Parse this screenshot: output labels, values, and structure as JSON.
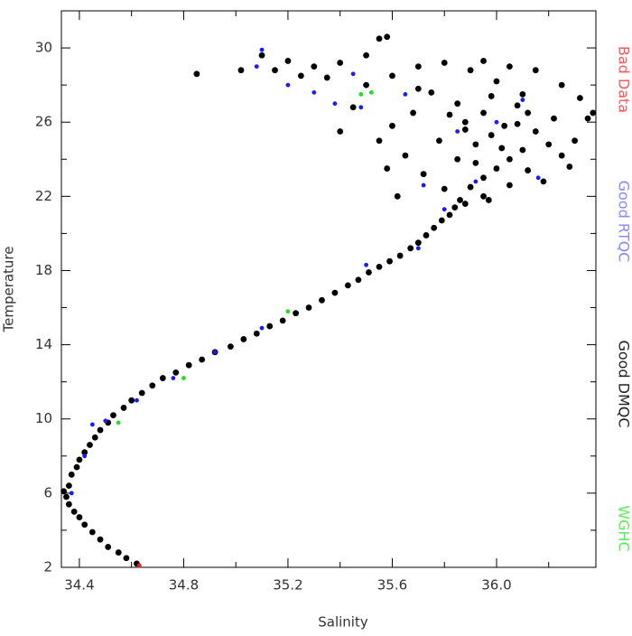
{
  "chart_data": {
    "type": "scatter",
    "xlabel": "Salinity",
    "ylabel": "Temperature",
    "xlim": [
      34.331,
      36.381
    ],
    "ylim": [
      2,
      32
    ],
    "xticks": [
      34.4,
      34.8,
      35.2,
      35.6,
      {
        "value": 36.0,
        "label": "36.0"
      }
    ],
    "xminor_ticks": [
      34.6,
      35.0,
      35.4,
      35.8,
      36.2
    ],
    "yticks": [
      2,
      6,
      10,
      14,
      18,
      22,
      26,
      30
    ],
    "yminor_ticks": [
      4,
      8,
      12,
      16,
      20,
      24,
      28
    ],
    "legend": "right",
    "series": [
      {
        "name": "Good DMQC",
        "color": "#000000",
        "x": [
          34.62,
          34.58,
          34.55,
          34.51,
          34.48,
          34.45,
          34.42,
          34.4,
          34.38,
          34.36,
          34.35,
          34.34,
          34.36,
          34.37,
          34.39,
          34.4,
          34.42,
          34.44,
          34.46,
          34.48,
          34.51,
          34.53,
          34.57,
          34.6,
          34.64,
          34.68,
          34.72,
          34.77,
          34.82,
          34.87,
          34.92,
          34.98,
          35.03,
          35.08,
          35.13,
          35.18,
          35.23,
          35.28,
          35.33,
          35.38,
          35.43,
          35.47,
          35.51,
          35.55,
          35.59,
          35.63,
          35.67,
          35.7,
          35.73,
          35.76,
          35.79,
          35.82,
          35.84,
          35.86,
          35.9,
          35.95,
          36.0,
          36.05,
          36.1,
          35.92,
          35.98,
          36.03,
          35.88,
          35.95,
          36.08,
          36.15,
          36.2,
          36.25,
          36.12,
          36.05,
          35.97,
          36.18,
          36.28,
          36.3,
          36.22,
          36.1,
          36.0,
          35.9,
          35.8,
          35.7,
          35.6,
          35.75,
          35.85,
          35.68,
          35.6,
          35.55,
          35.65,
          35.72,
          35.8,
          35.62,
          35.58,
          35.7,
          35.5,
          35.45,
          35.4,
          36.35,
          36.37,
          36.32,
          36.25,
          36.15,
          36.05,
          35.95,
          35.85,
          35.92,
          36.02,
          36.08,
          35.98,
          35.88,
          36.12,
          35.78,
          35.82,
          35.95,
          35.88,
          35.55,
          35.58,
          35.5,
          35.4,
          35.3,
          35.2,
          35.15,
          35.1,
          34.85,
          35.02,
          35.25,
          35.35
        ],
        "values": [
          2.2,
          2.5,
          2.8,
          3.1,
          3.5,
          3.9,
          4.3,
          4.7,
          5.0,
          5.4,
          5.8,
          6.1,
          6.4,
          7.0,
          7.4,
          7.8,
          8.2,
          8.6,
          9.0,
          9.4,
          9.8,
          10.2,
          10.6,
          11.0,
          11.4,
          11.8,
          12.2,
          12.5,
          12.9,
          13.2,
          13.6,
          13.9,
          14.3,
          14.6,
          15.0,
          15.3,
          15.7,
          16.0,
          16.4,
          16.8,
          17.2,
          17.5,
          17.9,
          18.2,
          18.5,
          18.8,
          19.2,
          19.5,
          19.9,
          20.3,
          20.7,
          21.0,
          21.4,
          21.8,
          22.5,
          23.0,
          23.5,
          24.0,
          24.5,
          24.8,
          25.3,
          25.8,
          26.0,
          26.5,
          26.9,
          25.5,
          24.8,
          24.2,
          23.4,
          22.6,
          21.8,
          22.8,
          23.6,
          25.0,
          26.2,
          27.5,
          28.2,
          28.8,
          29.2,
          29.0,
          28.5,
          27.6,
          27.0,
          26.5,
          25.8,
          25.0,
          24.2,
          23.2,
          22.4,
          22.0,
          23.5,
          27.8,
          28.0,
          26.8,
          25.5,
          26.2,
          26.5,
          27.3,
          28.0,
          28.8,
          29.0,
          29.3,
          24.0,
          23.8,
          24.6,
          25.9,
          27.4,
          25.6,
          26.5,
          25.0,
          26.4,
          22.0,
          21.6,
          30.5,
          30.6,
          29.6,
          29.2,
          29.0,
          29.3,
          28.8,
          29.6,
          28.6,
          28.8,
          28.5,
          28.4
        ]
      },
      {
        "name": "Good RTQC",
        "color": "#1a1aff",
        "x": [
          35.1,
          35.08,
          35.2,
          35.3,
          35.38,
          35.48,
          35.45,
          35.65,
          35.72,
          35.8,
          35.92,
          36.16,
          36.0,
          35.85,
          35.7,
          35.5,
          35.1,
          34.92,
          34.76,
          34.62,
          34.5,
          34.45,
          34.37,
          34.42,
          36.1
        ],
        "values": [
          29.9,
          29.0,
          28.0,
          27.6,
          27.0,
          26.8,
          28.6,
          27.5,
          22.6,
          21.3,
          22.8,
          23.0,
          26.0,
          25.5,
          19.2,
          18.3,
          14.9,
          13.6,
          12.2,
          11.0,
          9.9,
          9.7,
          6.0,
          8.0,
          27.2
        ]
      },
      {
        "name": "WGHC",
        "color": "#22dd22",
        "x": [
          35.48,
          35.52,
          34.8,
          34.55,
          35.2
        ],
        "values": [
          27.5,
          27.6,
          12.2,
          9.8,
          15.8
        ]
      },
      {
        "name": "Bad Data",
        "color": "#ee2222",
        "x": [
          34.63
        ],
        "values": [
          2.1
        ]
      }
    ]
  }
}
